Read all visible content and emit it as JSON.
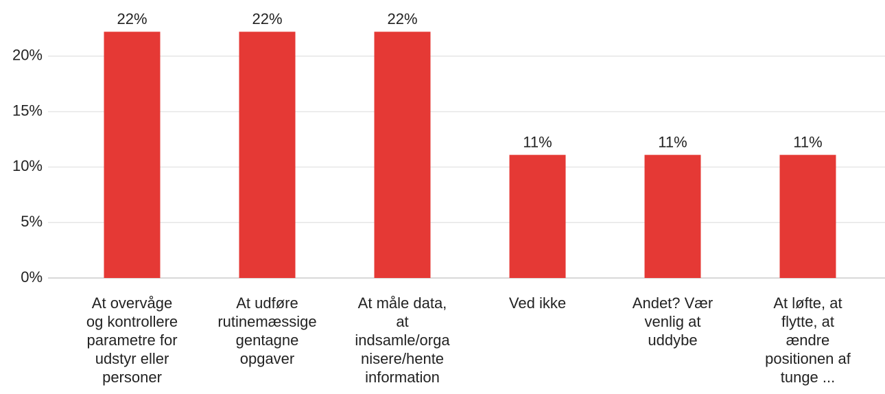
{
  "chart_data": {
    "type": "bar",
    "categories": [
      "At overvåge\nog kontrollere\nparametre for\nudstyr eller\npersoner",
      "At udføre\nrutinemæssige\ngentagne\nopgaver",
      "At måle data,\nat\nindsamle/orga\nnisere/hente\ninformation",
      "Ved ikke",
      "Andet? Vær\nvenlig at\nuddybe",
      "At løfte, at\nflytte, at\nændre\npositionen af\ntunge ..."
    ],
    "values": [
      22.2,
      22.2,
      22.2,
      11.1,
      11.1,
      11.1
    ],
    "value_labels": [
      "22%",
      "22%",
      "22%",
      "11%",
      "11%",
      "11%"
    ],
    "color": "#e53935",
    "ylim": [
      0,
      25
    ],
    "yticks": [
      {
        "value": 0,
        "label": "0%"
      },
      {
        "value": 5,
        "label": "5%"
      },
      {
        "value": 10,
        "label": "10%"
      },
      {
        "value": 15,
        "label": "15%"
      },
      {
        "value": 20,
        "label": "20%"
      }
    ],
    "grid": true
  }
}
